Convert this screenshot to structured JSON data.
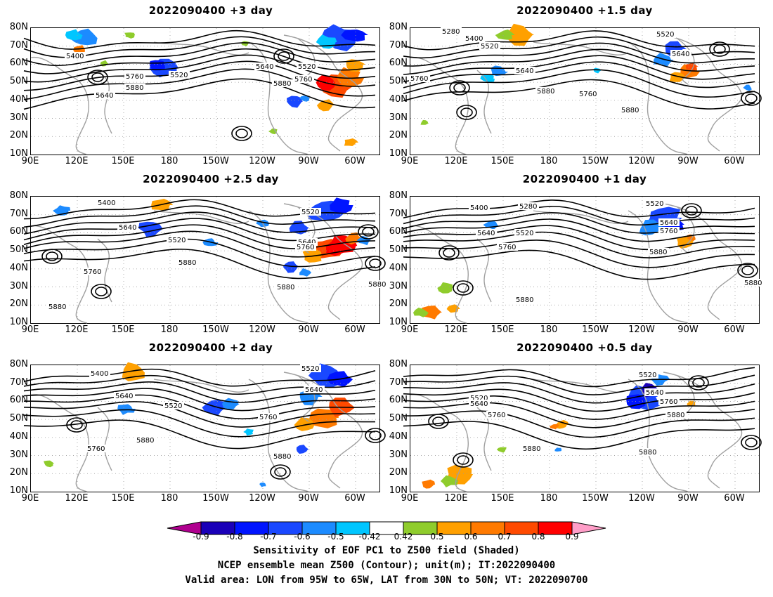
{
  "panels": [
    {
      "title": "2022090400 +3 day",
      "labels": [
        {
          "t": "5400"
        },
        {
          "t": "5520"
        },
        {
          "t": "5640"
        },
        {
          "t": "5760"
        },
        {
          "t": "5880"
        },
        {
          "t": "5640"
        },
        {
          "t": "5520"
        },
        {
          "t": "5760"
        },
        {
          "t": "5880"
        }
      ]
    },
    {
      "title": "2022090400 +1.5 day",
      "labels": [
        {
          "t": "5280"
        },
        {
          "t": "5400"
        },
        {
          "t": "5520"
        },
        {
          "t": "5640"
        },
        {
          "t": "5760"
        },
        {
          "t": "5880"
        },
        {
          "t": "5760"
        },
        {
          "t": "5880"
        },
        {
          "t": "5520"
        },
        {
          "t": "5640"
        }
      ]
    },
    {
      "title": "2022090400 +2.5 day",
      "labels": [
        {
          "t": "5400"
        },
        {
          "t": "5640"
        },
        {
          "t": "5520"
        },
        {
          "t": "5760"
        },
        {
          "t": "5880"
        },
        {
          "t": "5520"
        },
        {
          "t": "5640"
        },
        {
          "t": "5760"
        },
        {
          "t": "5880"
        },
        {
          "t": "5880"
        },
        {
          "t": "5880"
        }
      ]
    },
    {
      "title": "2022090400 +1 day",
      "labels": [
        {
          "t": "5400"
        },
        {
          "t": "5280"
        },
        {
          "t": "5640"
        },
        {
          "t": "5520"
        },
        {
          "t": "5760"
        },
        {
          "t": "5520"
        },
        {
          "t": "5640"
        },
        {
          "t": "5760"
        },
        {
          "t": "5880"
        },
        {
          "t": "5880"
        },
        {
          "t": "5880"
        }
      ]
    },
    {
      "title": "2022090400 +2 day",
      "labels": [
        {
          "t": "5400"
        },
        {
          "t": "5640"
        },
        {
          "t": "5520"
        },
        {
          "t": "5760"
        },
        {
          "t": "5880"
        },
        {
          "t": "5520"
        },
        {
          "t": "5640"
        },
        {
          "t": "5760"
        },
        {
          "t": "5880"
        }
      ]
    },
    {
      "title": "2022090400 +0.5 day",
      "labels": [
        {
          "t": "5520"
        },
        {
          "t": "5640"
        },
        {
          "t": "5760"
        },
        {
          "t": "5880"
        },
        {
          "t": "5520"
        },
        {
          "t": "5640"
        },
        {
          "t": "5760"
        },
        {
          "t": "5880"
        },
        {
          "t": "5880"
        }
      ]
    }
  ],
  "axes": {
    "lat_labels": [
      "80N",
      "70N",
      "60N",
      "50N",
      "40N",
      "30N",
      "20N",
      "10N"
    ],
    "lon_labels": [
      "90E",
      "120E",
      "150E",
      "180",
      "150W",
      "120W",
      "90W",
      "60W"
    ]
  },
  "colorbar": {
    "labels": [
      "-0.9",
      "-0.8",
      "-0.7",
      "-0.6",
      "-0.5",
      "-0.42",
      "0.42",
      "0.5",
      "0.6",
      "0.7",
      "0.8",
      "0.9"
    ],
    "colors": [
      "#b0008f",
      "#1a00b8",
      "#0014ff",
      "#1a48ff",
      "#1c8bff",
      "#00c6ff",
      "#ffffff",
      "#8fcc2c",
      "#ffa000",
      "#ff7a00",
      "#ff4a00",
      "#ff0000",
      "#ff9ec8"
    ]
  },
  "caption": {
    "line1": "Sensitivity of EOF PC1 to Z500 field (Shaded)",
    "line2": "NCEP ensemble mean Z500 (Contour); unit(m); IT:2022090400",
    "line3": "Valid area: LON from 95W to 65W, LAT from 30N to 50N; VT: 2022090700"
  }
}
